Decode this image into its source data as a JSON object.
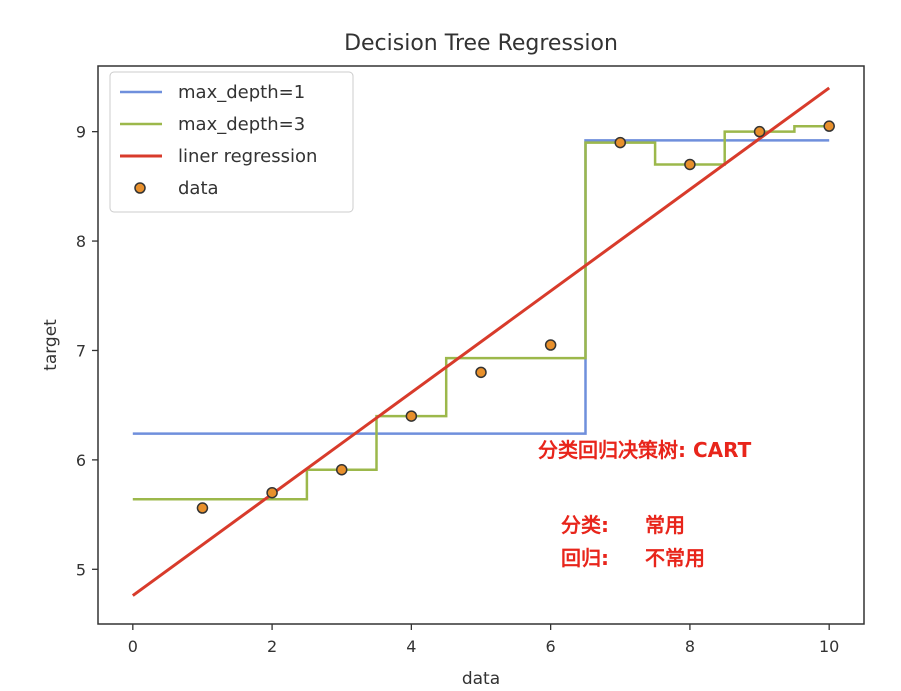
{
  "chart_data": {
    "type": "line",
    "title": "Decision Tree Regression",
    "xlabel": "data",
    "ylabel": "target",
    "xlim": [
      -0.5,
      10.5
    ],
    "ylim": [
      4.5,
      9.6
    ],
    "xticks": [
      0,
      2,
      4,
      6,
      8,
      10
    ],
    "yticks": [
      5,
      6,
      7,
      8,
      9
    ],
    "grid": false,
    "legend_position": "top-left",
    "series": [
      {
        "name": "max_depth=1",
        "kind": "step",
        "color": "#6f8fdc",
        "x": [
          0,
          6.5,
          6.5,
          10
        ],
        "y": [
          6.24,
          6.24,
          8.92,
          8.92
        ]
      },
      {
        "name": "max_depth=3",
        "kind": "step",
        "color": "#9cb84b",
        "x": [
          0,
          2.5,
          2.5,
          3.5,
          3.5,
          4.5,
          4.5,
          6.5,
          6.5,
          7.5,
          7.5,
          8.5,
          8.5,
          9.5,
          9.5,
          10
        ],
        "y": [
          5.64,
          5.64,
          5.91,
          5.91,
          6.4,
          6.4,
          6.93,
          6.93,
          8.9,
          8.9,
          8.7,
          8.7,
          9.0,
          9.0,
          9.05,
          9.05
        ]
      },
      {
        "name": "liner regression",
        "kind": "line",
        "color": "#d83b2b",
        "x": [
          0,
          10
        ],
        "y": [
          4.76,
          9.4
        ]
      },
      {
        "name": "data",
        "kind": "scatter",
        "color": "#e8902c",
        "x": [
          1,
          2,
          3,
          4,
          5,
          6,
          7,
          8,
          9,
          10
        ],
        "y": [
          5.56,
          5.7,
          5.91,
          6.4,
          6.8,
          7.05,
          8.9,
          8.7,
          9.0,
          9.05
        ]
      }
    ]
  },
  "annotations": {
    "title_line": "分类回归决策树: CART",
    "rows": [
      {
        "label": "分类:",
        "value": "常用"
      },
      {
        "label": "回归:",
        "value": "不常用"
      }
    ],
    "color": "#e8251b"
  }
}
